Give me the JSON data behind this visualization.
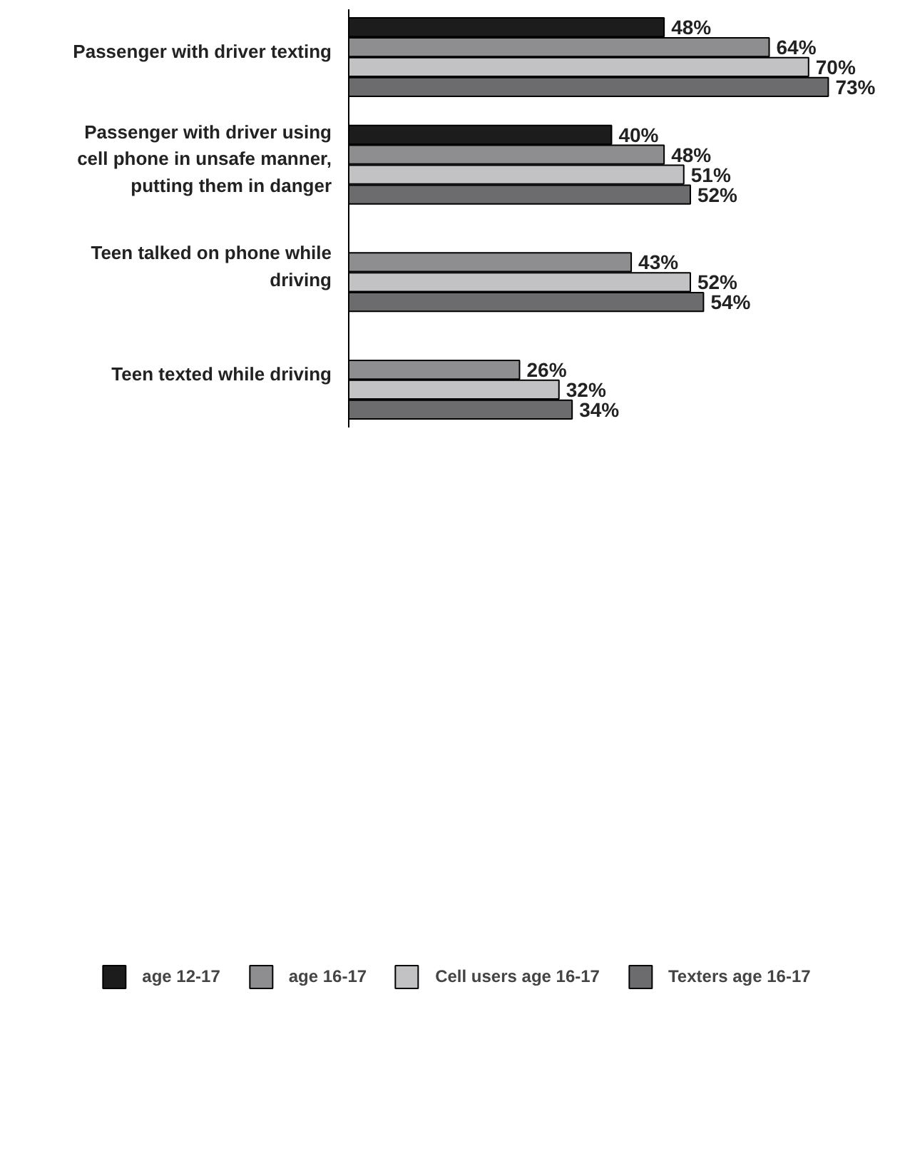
{
  "chart_data": {
    "type": "bar",
    "orientation": "horizontal",
    "categories": [
      "Passenger with driver texting",
      "Passenger with driver using cell phone in unsafe manner, putting them in danger",
      "Teen talked on phone while driving",
      "Teen texted while driving"
    ],
    "series": [
      {
        "name": "age 12-17",
        "color": "#1c1c1c",
        "values": [
          48,
          40,
          null,
          null
        ],
        "value_labels": [
          "48%",
          "40%",
          null,
          null
        ]
      },
      {
        "name": "age 16-17",
        "color": "#8e8e90",
        "values": [
          64,
          48,
          43,
          26
        ],
        "value_labels": [
          "64%",
          "48%",
          "43%",
          "26%"
        ]
      },
      {
        "name": "Cell users age 16-17",
        "color": "#c2c2c4",
        "values": [
          70,
          51,
          52,
          32
        ],
        "value_labels": [
          "70%",
          "51%",
          "52%",
          "32%"
        ]
      },
      {
        "name": "Texters age 16-17",
        "color": "#6c6c6e",
        "values": [
          73,
          52,
          54,
          34
        ],
        "value_labels": [
          "73%",
          "52%",
          "54%",
          "34%"
        ]
      }
    ],
    "legend": "bottom",
    "grid": false
  }
}
